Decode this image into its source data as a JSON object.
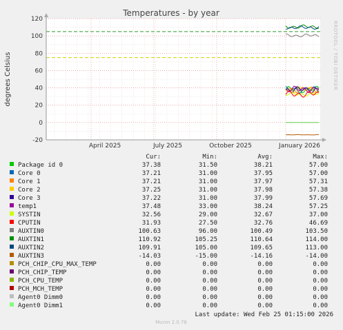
{
  "chart_data": {
    "type": "line",
    "title": "Temperatures - by year",
    "ylabel": "degrees Celsius",
    "watermark": "RRDTOOL / TOBI OETIKER",
    "ylim": [
      -20,
      120
    ],
    "yticks": [
      120,
      100,
      80,
      60,
      40,
      20,
      0,
      -20
    ],
    "xlabels": [
      "April 2025",
      "July 2025",
      "October 2025",
      "January 2026"
    ],
    "grid": true,
    "warning_line": 75,
    "critical_line": 105,
    "columns": [
      "Cur:",
      "Min:",
      "Avg:",
      "Max:"
    ],
    "series": [
      {
        "name": "Package id 0",
        "color": "#00cc00",
        "values": [
          "37.38",
          "31.50",
          "38.21",
          "57.00"
        ]
      },
      {
        "name": "Core 0",
        "color": "#0066b3",
        "values": [
          "37.21",
          "31.00",
          "37.95",
          "57.00"
        ]
      },
      {
        "name": "Core 1",
        "color": "#ff8000",
        "values": [
          "37.21",
          "31.00",
          "37.97",
          "57.31"
        ]
      },
      {
        "name": "Core 2",
        "color": "#ffcc00",
        "values": [
          "37.25",
          "31.00",
          "37.98",
          "57.38"
        ]
      },
      {
        "name": "Core 3",
        "color": "#330099",
        "values": [
          "37.22",
          "31.00",
          "37.99",
          "57.69"
        ]
      },
      {
        "name": "temp1",
        "color": "#990099",
        "values": [
          "37.48",
          "33.00",
          "38.24",
          "57.25"
        ]
      },
      {
        "name": "SYSTIN",
        "color": "#ccff00",
        "values": [
          "32.56",
          "29.00",
          "32.67",
          "37.00"
        ]
      },
      {
        "name": "CPUTIN",
        "color": "#ff0000",
        "values": [
          "31.93",
          "27.50",
          "32.76",
          "46.69"
        ]
      },
      {
        "name": "AUXTIN0",
        "color": "#808080",
        "values": [
          "100.63",
          "96.00",
          "100.49",
          "103.50"
        ]
      },
      {
        "name": "AUXTIN1",
        "color": "#008f00",
        "values": [
          "110.92",
          "105.25",
          "110.64",
          "114.00"
        ]
      },
      {
        "name": "AUXTIN2",
        "color": "#00487d",
        "values": [
          "109.91",
          "105.00",
          "109.65",
          "113.00"
        ]
      },
      {
        "name": "AUXTIN3",
        "color": "#b35a00",
        "values": [
          "-14.03",
          "-15.00",
          "-14.16",
          "-14.00"
        ]
      },
      {
        "name": "PCH_CHIP_CPU_MAX_TEMP",
        "color": "#b38f00",
        "values": [
          "0.00",
          "0.00",
          "0.00",
          "0.00"
        ]
      },
      {
        "name": "PCH_CHIP_TEMP",
        "color": "#6b006b",
        "values": [
          "0.00",
          "0.00",
          "0.00",
          "0.00"
        ]
      },
      {
        "name": "PCH_CPU_TEMP",
        "color": "#8fb300",
        "values": [
          "0.00",
          "0.00",
          "0.00",
          "0.00"
        ]
      },
      {
        "name": "PCH_MCH_TEMP",
        "color": "#b30000",
        "values": [
          "0.00",
          "0.00",
          "0.00",
          "0.00"
        ]
      },
      {
        "name": "Agent0 Dimm0",
        "color": "#bebebe",
        "values": [
          "0.00",
          "0.00",
          "0.00",
          "0.00"
        ]
      },
      {
        "name": "Agent0 Dimm1",
        "color": "#80ff80",
        "values": [
          "0.00",
          "0.00",
          "0.00",
          "0.00"
        ]
      }
    ],
    "last_update": "Last update: Wed Feb 25 01:15:00 2026",
    "footer": "Munin 2.0.76"
  }
}
